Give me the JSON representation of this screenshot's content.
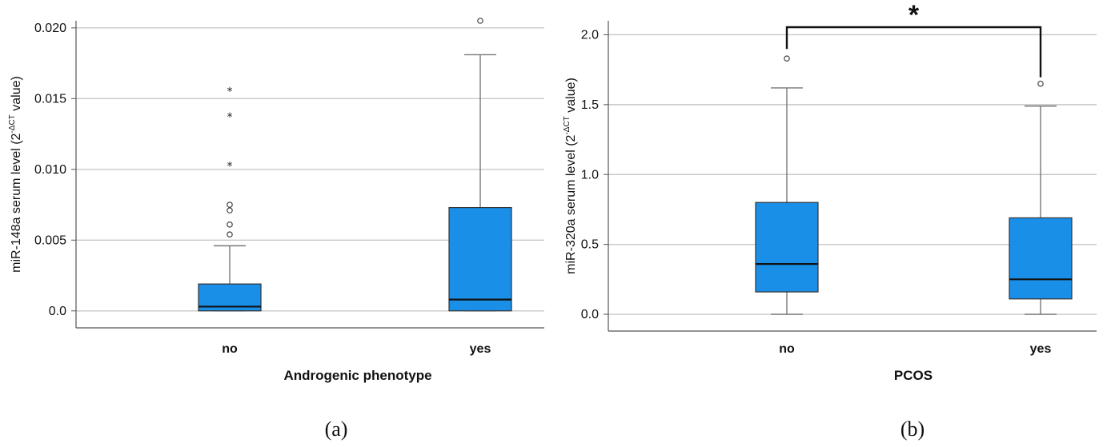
{
  "chart_data": [
    {
      "type": "box",
      "panel_label": "(a)",
      "xlabel": "Androgenic phenotype",
      "ylabel": "miR-148a serum level (2",
      "ylabel_superscript": "-ΔCT",
      "ylabel_suffix": " value)",
      "ylim": [
        -0.0012,
        0.0205
      ],
      "yticks": [
        0.0,
        0.005,
        0.01,
        0.015,
        0.02
      ],
      "ytick_labels": [
        "0.0",
        "0.005",
        "0.010",
        "0.015",
        "0.020"
      ],
      "grid": "horizontal",
      "box_color": "#1a8fe8",
      "categories": [
        "no",
        "yes"
      ],
      "boxes": [
        {
          "category": "no",
          "whisker_low": 0.0,
          "q1": 0.0,
          "median": 0.0003,
          "q3": 0.0019,
          "whisker_high": 0.0046,
          "outliers": [
            0.0054,
            0.0061,
            0.0071,
            0.0075
          ],
          "extremes": [
            0.0104,
            0.0139,
            0.0157
          ]
        },
        {
          "category": "yes",
          "whisker_low": 0.0,
          "q1": 0.0,
          "median": 0.0008,
          "q3": 0.0073,
          "whisker_high": 0.0181,
          "outliers": [
            0.0205
          ],
          "extremes": []
        }
      ]
    },
    {
      "type": "box",
      "panel_label": "(b)",
      "xlabel": "PCOS",
      "ylabel": "miR-320a serum level (2",
      "ylabel_superscript": "-ΔCT",
      "ylabel_suffix": " value)",
      "ylim": [
        -0.12,
        2.1
      ],
      "yticks": [
        0.0,
        0.5,
        1.0,
        1.5,
        2.0
      ],
      "ytick_labels": [
        "0.0",
        "0.5",
        "1.0",
        "1.5",
        "2.0"
      ],
      "grid": "horizontal",
      "box_color": "#1a8fe8",
      "categories": [
        "no",
        "yes"
      ],
      "boxes": [
        {
          "category": "no",
          "whisker_low": 0.0,
          "q1": 0.16,
          "median": 0.36,
          "q3": 0.8,
          "whisker_high": 1.62,
          "outliers": [
            1.83
          ],
          "extremes": []
        },
        {
          "category": "yes",
          "whisker_low": 0.0,
          "q1": 0.11,
          "median": 0.25,
          "q3": 0.69,
          "whisker_high": 1.49,
          "outliers": [
            1.65
          ],
          "extremes": []
        }
      ],
      "significance": {
        "between": [
          "no",
          "yes"
        ],
        "label": "*"
      }
    }
  ]
}
